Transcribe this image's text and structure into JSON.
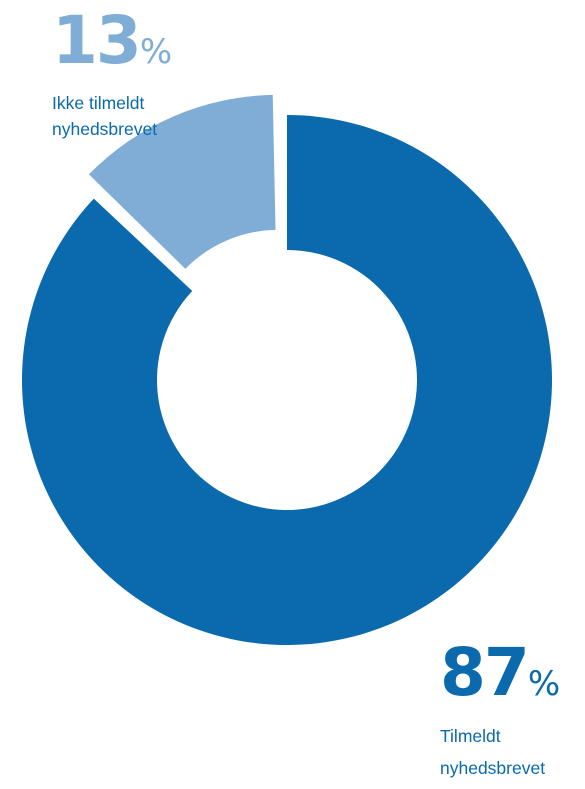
{
  "chart_data": {
    "type": "pie",
    "variant": "donut",
    "slices": [
      {
        "value": 87,
        "number_text": "87",
        "unit": "%",
        "label_lines": [
          "Tilmeldt",
          "nyhedsbrevet"
        ],
        "color": "#0a6aad"
      },
      {
        "value": 13,
        "number_text": "13",
        "unit": "%",
        "label_lines": [
          "Ikke tilmeldt",
          "nyhedsbrevet"
        ],
        "color": "#7fadd6",
        "exploded": true
      }
    ],
    "legend": "none"
  }
}
